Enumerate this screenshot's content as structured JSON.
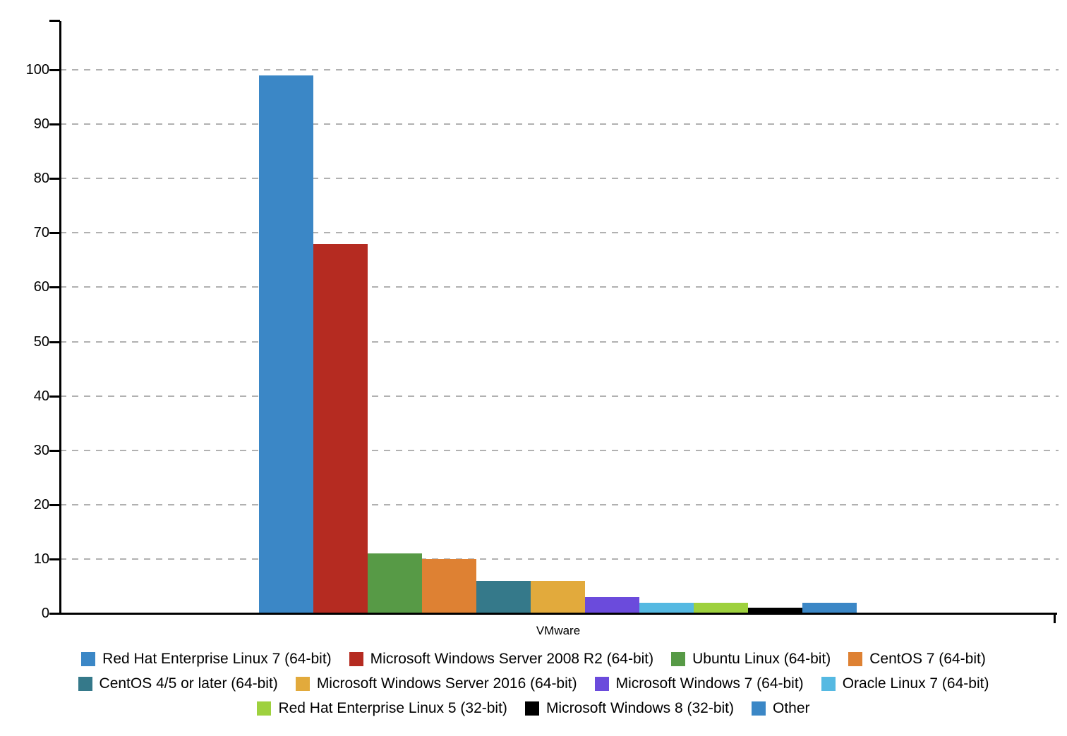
{
  "chart_data": {
    "type": "bar",
    "title": "",
    "xlabel": "",
    "ylabel": "",
    "categories": [
      "VMware"
    ],
    "y_ticks": [
      0,
      10,
      20,
      30,
      40,
      50,
      60,
      70,
      80,
      90,
      100
    ],
    "ylim": [
      0,
      110
    ],
    "grid": "horizontal-dashed",
    "gridline_color": "#b1b1b1",
    "axis_color": "#000000",
    "legend_position": "bottom-centered",
    "series": [
      {
        "name": "Red Hat Enterprise Linux 7 (64-bit)",
        "color": "#3b87c6",
        "values": [
          99
        ]
      },
      {
        "name": "Microsoft Windows Server 2008 R2 (64-bit)",
        "color": "#b52b21",
        "values": [
          68
        ]
      },
      {
        "name": "Ubuntu Linux (64-bit)",
        "color": "#579a46",
        "values": [
          11
        ]
      },
      {
        "name": "CentOS 7 (64-bit)",
        "color": "#de8133",
        "values": [
          10
        ]
      },
      {
        "name": "CentOS 4/5 or later (64-bit)",
        "color": "#35798a",
        "values": [
          6
        ]
      },
      {
        "name": "Microsoft Windows Server 2016 (64-bit)",
        "color": "#e2aa3c",
        "values": [
          6
        ]
      },
      {
        "name": "Microsoft Windows 7 (64-bit)",
        "color": "#6b4bdc",
        "values": [
          3
        ]
      },
      {
        "name": "Oracle Linux 7 (64-bit)",
        "color": "#55b9e2",
        "values": [
          2
        ]
      },
      {
        "name": "Red Hat Enterprise Linux 5 (32-bit)",
        "color": "#9ed13e",
        "values": [
          2
        ]
      },
      {
        "name": "Microsoft Windows 8 (32-bit)",
        "color": "#000000",
        "values": [
          1
        ]
      },
      {
        "name": "Other",
        "color": "#3b87c6",
        "values": [
          2
        ]
      }
    ],
    "legend_rows": [
      [
        0,
        1,
        2,
        3
      ],
      [
        4,
        5,
        6,
        7
      ],
      [
        8,
        9,
        10
      ]
    ]
  }
}
